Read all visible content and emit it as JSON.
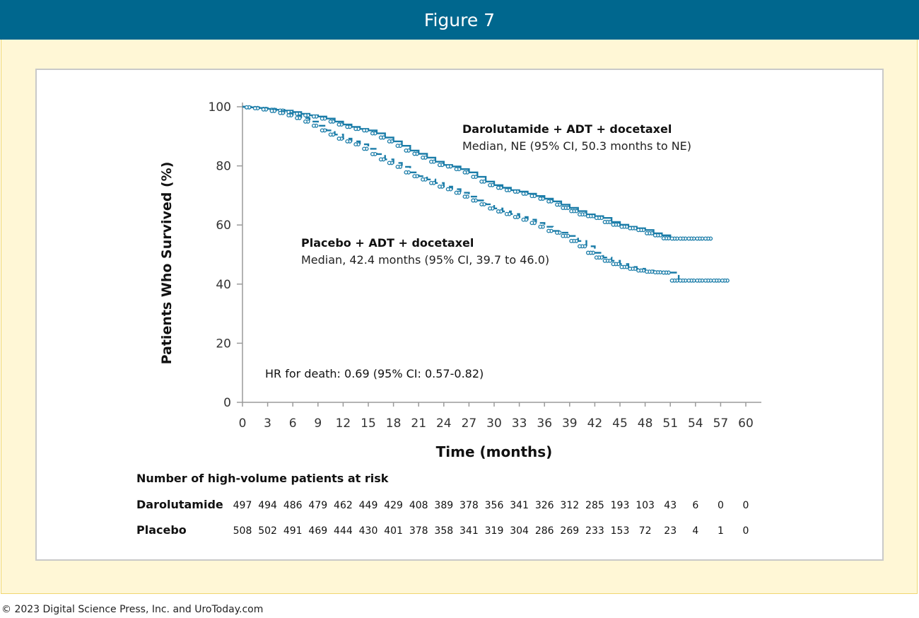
{
  "header": {
    "title": "Figure 7"
  },
  "footer": {
    "copyright": "© 2023 Digital Science Press, Inc. and UroToday.com"
  },
  "colors": {
    "header_bg": "#00678e",
    "frame_bg": "#fff7d6",
    "frame_border": "#f0d670",
    "series": "#1a7ca8",
    "axis": "#9a9a9a"
  },
  "chart_data": {
    "type": "line",
    "title": "",
    "xlabel": "Time (months)",
    "ylabel": "Patients Who Survived (%)",
    "xlim": [
      0,
      60
    ],
    "ylim": [
      0,
      100
    ],
    "x_ticks": [
      "0",
      "3",
      "6",
      "9",
      "12",
      "15",
      "18",
      "21",
      "24",
      "27",
      "30",
      "33",
      "36",
      "39",
      "42",
      "45",
      "48",
      "51",
      "54",
      "57",
      "60"
    ],
    "y_ticks": [
      "0",
      "20",
      "40",
      "60",
      "80",
      "100"
    ],
    "grid": false,
    "series": [
      {
        "name": "Darolutamide + ADT + docetaxel",
        "median_label": "Median, NE (95% CI, 50.3 months to NE)",
        "line_style": "solid",
        "x": [
          0,
          1,
          2,
          3,
          4,
          5,
          6,
          7,
          8,
          9,
          10,
          11,
          12,
          13,
          14,
          15,
          16,
          17,
          18,
          19,
          20,
          21,
          22,
          23,
          24,
          25,
          26,
          27,
          28,
          29,
          30,
          31,
          32,
          33,
          34,
          35,
          36,
          37,
          38,
          39,
          40,
          41,
          42,
          43,
          44,
          45,
          46,
          47,
          48,
          49,
          50,
          51,
          52,
          53,
          54,
          55,
          56
        ],
        "y": [
          100,
          99.8,
          99.6,
          99.3,
          99,
          98.7,
          98.2,
          97.6,
          97.1,
          96.7,
          96,
          95,
          94,
          93.2,
          92.5,
          92,
          91,
          89.6,
          88.3,
          86.8,
          85.2,
          84.1,
          82.8,
          81.4,
          80.3,
          79.8,
          78.9,
          77.8,
          76.3,
          74.7,
          73.5,
          72.6,
          71.8,
          71.3,
          70.6,
          69.8,
          68.9,
          68,
          66.9,
          65.8,
          64.7,
          63.6,
          63,
          62.4,
          61,
          60.1,
          59.4,
          58.9,
          58.3,
          57.2,
          56.5,
          55.5,
          55.4,
          55.4,
          55.4,
          55.4,
          55.4
        ]
      },
      {
        "name": "Placebo + ADT + docetaxel",
        "median_label": "Median, 42.4 months (95% CI, 39.7 to 46.0)",
        "line_style": "dashed",
        "x": [
          0,
          1,
          2,
          3,
          4,
          5,
          6,
          7,
          8,
          9,
          10,
          11,
          12,
          13,
          14,
          15,
          16,
          17,
          18,
          19,
          20,
          21,
          22,
          23,
          24,
          25,
          26,
          27,
          28,
          29,
          30,
          31,
          32,
          33,
          34,
          35,
          36,
          37,
          38,
          39,
          40,
          41,
          42,
          43,
          44,
          45,
          46,
          47,
          48,
          49,
          50,
          51,
          52,
          53,
          54,
          55,
          56,
          57,
          58
        ],
        "y": [
          100,
          99.8,
          99.5,
          99.1,
          98.6,
          97.9,
          97.1,
          96.2,
          95,
          93.6,
          92,
          90.6,
          89.2,
          88.3,
          87.3,
          85.8,
          84,
          82.2,
          81,
          79.7,
          77.8,
          76.5,
          75.4,
          74.2,
          73,
          72.1,
          70.9,
          69.6,
          68.3,
          67,
          65.6,
          64.6,
          63.7,
          62.7,
          61.8,
          60.7,
          59.4,
          58,
          57.4,
          56.3,
          54.6,
          52.8,
          50.6,
          49,
          47.9,
          46.8,
          45.8,
          45.2,
          44.6,
          44.2,
          44,
          43.9,
          41.2,
          41.2,
          41.2,
          41.2,
          41.2,
          41.2,
          41.2
        ]
      }
    ],
    "annotations": {
      "hr": "HR for death: 0.69 (95% CI: 0.57-0.82)"
    },
    "risk_table": {
      "title": "Number of high-volume patients at risk",
      "rows": [
        {
          "label": "Darolutamide",
          "values": [
            "497",
            "494",
            "486",
            "479",
            "462",
            "449",
            "429",
            "408",
            "389",
            "378",
            "356",
            "341",
            "326",
            "312",
            "285",
            "193",
            "103",
            "43",
            "6",
            "0",
            "0"
          ]
        },
        {
          "label": "Placebo",
          "values": [
            "508",
            "502",
            "491",
            "469",
            "444",
            "430",
            "401",
            "378",
            "358",
            "341",
            "319",
            "304",
            "286",
            "269",
            "233",
            "153",
            "72",
            "23",
            "4",
            "1",
            "0"
          ]
        }
      ]
    }
  }
}
